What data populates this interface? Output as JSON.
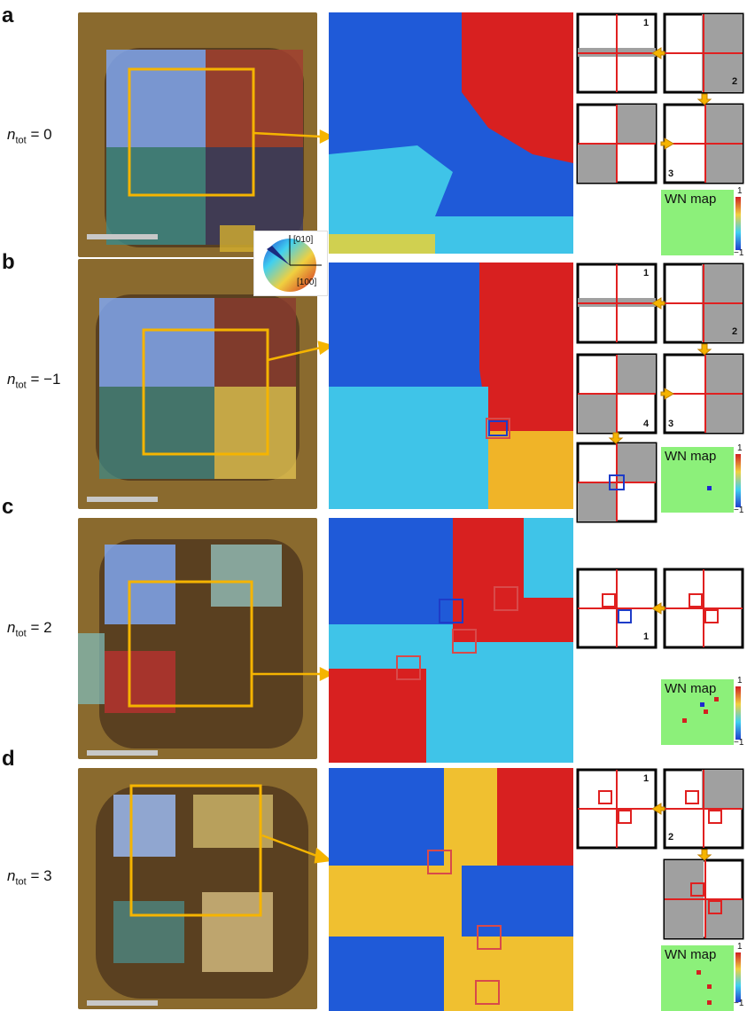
{
  "panels": [
    {
      "letter": "a",
      "ntot_symbol": "n",
      "ntot_sub": "tot",
      "ntot_value": "= 0"
    },
    {
      "letter": "b",
      "ntot_symbol": "n",
      "ntot_sub": "tot",
      "ntot_value": "= −1"
    },
    {
      "letter": "c",
      "ntot_symbol": "n",
      "ntot_sub": "tot",
      "ntot_value": "= 2"
    },
    {
      "letter": "d",
      "ntot_symbol": "n",
      "ntot_sub": "tot",
      "ntot_value": "= 3"
    }
  ],
  "wn_map": {
    "label": "WN map",
    "scale_max": "1",
    "scale_min": "−1",
    "background_color": "#8cf07a"
  },
  "color_wheel": {
    "axis_010": "[010]",
    "axis_100": "[100]"
  },
  "schematic_step_labels": {
    "a": [
      "1",
      "2",
      "3"
    ],
    "b": [
      "1",
      "2",
      "3",
      "4"
    ],
    "c": [
      "1"
    ],
    "d": [
      "1",
      "2"
    ]
  },
  "colors": {
    "accent_yellow": "#f5b400",
    "domain_wall_red": "#e02020",
    "domain_wall_blue": "#1e3cc8",
    "gray_domain": "#a0a0a0",
    "wn_positive": "#d42020",
    "wn_negative": "#1e28d0"
  }
}
